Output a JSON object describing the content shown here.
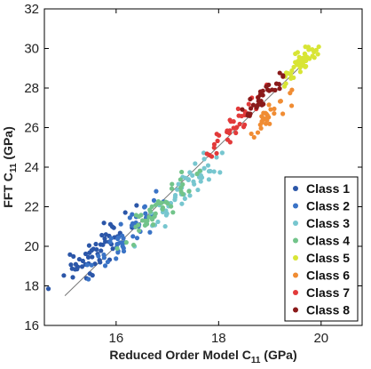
{
  "chart_data": {
    "type": "scatter",
    "xlabel_main": "Reduced Order Model C",
    "xlabel_sub": "11",
    "xlabel_unit": " (GPa)",
    "ylabel_main": "FFT C",
    "ylabel_sub": "11",
    "ylabel_unit": " (GPa)",
    "xlim": [
      14.6,
      20.8
    ],
    "ylim": [
      16,
      32
    ],
    "x_ticks": [
      16,
      18,
      20
    ],
    "y_ticks": [
      16,
      18,
      20,
      22,
      24,
      26,
      28,
      30,
      32
    ],
    "x_tick_labels": [
      "16",
      "18",
      "20"
    ],
    "y_tick_labels": [
      "16",
      "18",
      "20",
      "22",
      "24",
      "26",
      "28",
      "30",
      "32"
    ],
    "legend_position": "bottom-right",
    "fit_line": {
      "x": [
        15.0,
        19.8
      ],
      "y": [
        17.5,
        29.6
      ]
    },
    "series": [
      {
        "name": "Class 1",
        "color": "#2b56a8",
        "center": [
          15.6,
          19.7
        ],
        "spread": [
          0.35,
          0.9
        ],
        "n": 55
      },
      {
        "name": "Class 2",
        "color": "#3a73c6",
        "center": [
          16.2,
          20.6
        ],
        "spread": [
          0.35,
          0.75
        ],
        "n": 50
      },
      {
        "name": "Class 3",
        "color": "#77c6cf",
        "center": [
          17.4,
          23.0
        ],
        "spread": [
          0.4,
          0.7
        ],
        "n": 55
      },
      {
        "name": "Class 4",
        "color": "#72c48a",
        "center": [
          16.9,
          22.0
        ],
        "spread": [
          0.35,
          0.6
        ],
        "n": 45
      },
      {
        "name": "Class 5",
        "color": "#d8e535",
        "center": [
          19.6,
          29.3
        ],
        "spread": [
          0.2,
          0.55
        ],
        "n": 45
      },
      {
        "name": "Class 6",
        "color": "#f08c33",
        "center": [
          19.0,
          26.6
        ],
        "spread": [
          0.2,
          0.5
        ],
        "n": 30
      },
      {
        "name": "Class 7",
        "color": "#e23a3a",
        "center": [
          18.2,
          25.8
        ],
        "spread": [
          0.3,
          0.6
        ],
        "n": 38
      },
      {
        "name": "Class 8",
        "color": "#8a1a1a",
        "center": [
          18.8,
          27.3
        ],
        "spread": [
          0.25,
          0.55
        ],
        "n": 32
      }
    ]
  }
}
